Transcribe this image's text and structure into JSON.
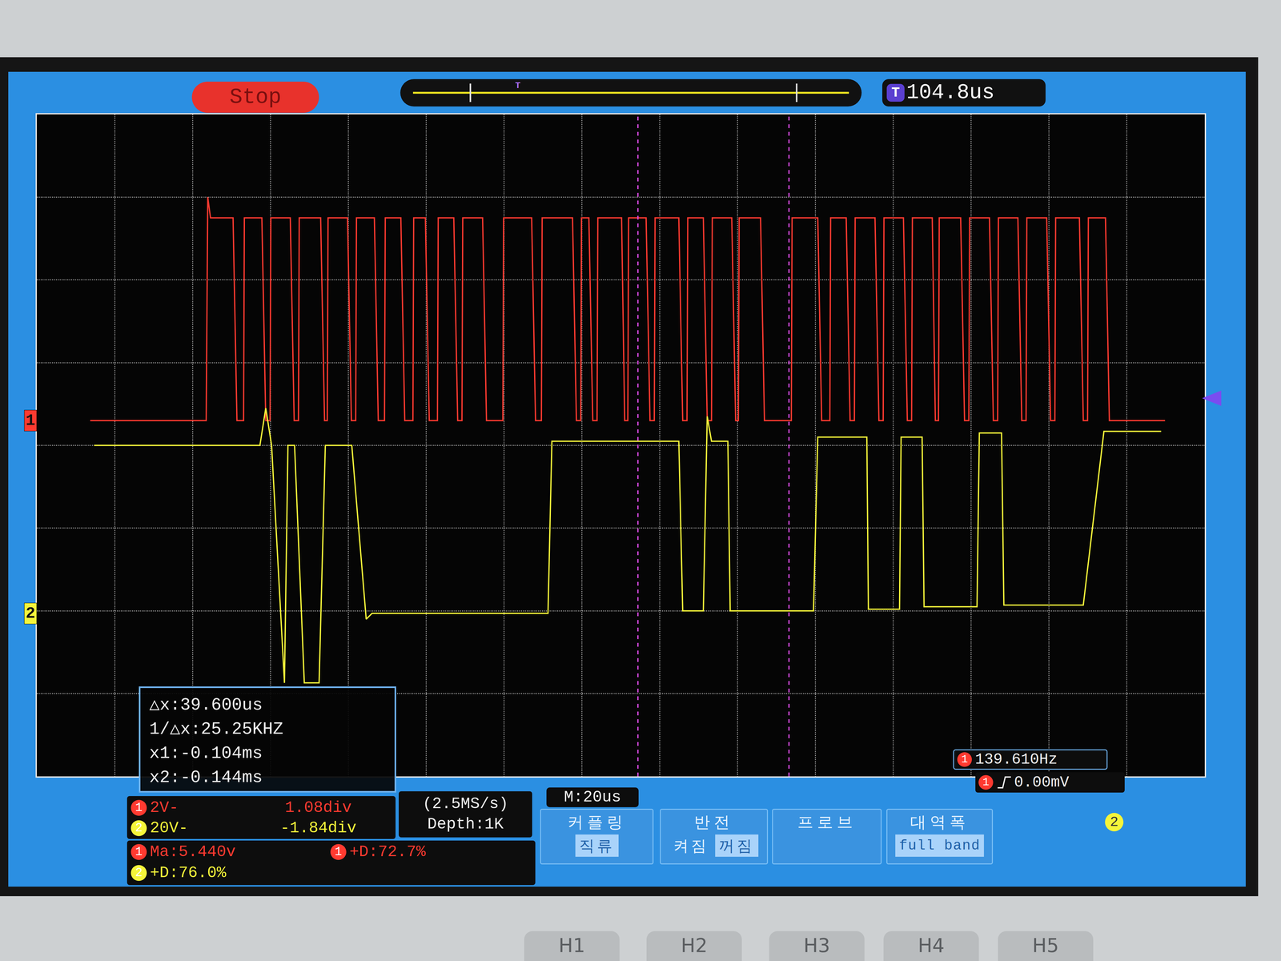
{
  "chart_data": {
    "type": "line",
    "xlim": [
      0,
      300
    ],
    "xticks": [
      0,
      20,
      40,
      60,
      80,
      100,
      120,
      140,
      160,
      180,
      200,
      220,
      240,
      260,
      280,
      300
    ],
    "ylim": [
      -4,
      4
    ],
    "yticks": [
      -4,
      -3,
      -2,
      -1,
      0,
      1,
      2,
      3,
      4
    ],
    "grid": true,
    "tick_labels": false,
    "series": [
      {
        "name": "1",
        "color": "#ff3a30",
        "ground": 0.3,
        "x": [
          13.7,
          43.5,
          43.9,
          44.6,
          50.4,
          51.4,
          53.1,
          53.3,
          57.8,
          58.8,
          59.9,
          60.1,
          65.1,
          66.1,
          67.2,
          67.4,
          72.9,
          73.9,
          74.6,
          74.8,
          79.8,
          80.8,
          81.9,
          82.1,
          86.7,
          87.7,
          89.3,
          89.5,
          93.5,
          94.5,
          96.6,
          96.8,
          99.8,
          100.8,
          102.9,
          103.1,
          107.1,
          108.1,
          109.2,
          109.4,
          114.5,
          115.5,
          119.7,
          119.9,
          127.1,
          128.1,
          129.6,
          129.8,
          137.6,
          138.6,
          139.7,
          139.9,
          141.8,
          142.8,
          143.9,
          144.1,
          150.2,
          151.0,
          151.8,
          152.0,
          156.5,
          157.5,
          158.6,
          158.8,
          164.9,
          165.9,
          167.0,
          167.2,
          171.2,
          172.2,
          173.3,
          173.5,
          178.5,
          179.5,
          180.2,
          180.4,
          185.9,
          186.9,
          193.8,
          194.0,
          200.6,
          201.6,
          203.7,
          203.9,
          207.9,
          208.9,
          210.0,
          210.2,
          215.3,
          216.3,
          217.4,
          217.6,
          222.6,
          223.6,
          224.7,
          224.9,
          230.0,
          230.8,
          231.6,
          231.8,
          237.3,
          238.3,
          239.4,
          239.6,
          244.7,
          245.7,
          246.8,
          247.0,
          252.0,
          253.0,
          254.1,
          254.3,
          259.4,
          260.4,
          261.5,
          261.7,
          267.8,
          268.8,
          269.9,
          270.1,
          274.5,
          275.5,
          289.8
        ],
        "values": [
          0.3,
          0.3,
          3.0,
          2.75,
          2.75,
          0.3,
          0.3,
          2.75,
          2.75,
          0.3,
          0.3,
          2.75,
          2.75,
          0.3,
          0.3,
          2.75,
          2.75,
          0.3,
          0.3,
          2.75,
          2.75,
          0.3,
          0.3,
          2.75,
          2.75,
          0.3,
          0.3,
          2.75,
          2.75,
          0.3,
          0.3,
          2.75,
          2.75,
          0.3,
          0.3,
          2.75,
          2.75,
          0.3,
          0.3,
          2.75,
          2.75,
          0.3,
          0.3,
          2.75,
          2.75,
          0.3,
          0.3,
          2.75,
          2.75,
          0.3,
          0.3,
          2.75,
          2.75,
          0.3,
          0.3,
          2.75,
          2.75,
          0.3,
          0.3,
          2.75,
          2.75,
          0.3,
          0.3,
          2.75,
          2.75,
          0.3,
          0.3,
          2.75,
          2.75,
          0.3,
          0.3,
          2.75,
          2.75,
          0.3,
          0.3,
          2.75,
          2.75,
          0.3,
          0.3,
          2.75,
          2.75,
          0.3,
          0.3,
          2.75,
          2.75,
          0.3,
          0.3,
          2.75,
          2.75,
          0.3,
          0.3,
          2.75,
          2.75,
          0.3,
          0.3,
          2.75,
          2.75,
          0.3,
          0.3,
          2.75,
          2.75,
          0.3,
          0.3,
          2.75,
          2.75,
          0.3,
          0.3,
          2.75,
          2.75,
          0.3,
          0.3,
          2.75,
          2.75,
          0.3,
          0.3,
          2.75,
          2.75,
          0.3,
          0.3,
          2.75,
          2.75,
          0.3,
          0.3
        ]
      },
      {
        "name": "2",
        "color": "#f5f53a",
        "ground": -2.03,
        "x": [
          14.7,
          57.3,
          58.8,
          60.3,
          63.6,
          64.5,
          66.2,
          68.7,
          72.5,
          74.1,
          80.9,
          84.6,
          86.1,
          131.3,
          132.3,
          164.9,
          165.9,
          171.2,
          172.2,
          173.3,
          177.5,
          178.1,
          199.5,
          200.6,
          213.2,
          213.6,
          221.6,
          222.0,
          227.4,
          227.9,
          241.5,
          242.1,
          247.8,
          248.4,
          268.8,
          274.1,
          288.8
        ],
        "values": [
          0,
          0,
          0.45,
          0,
          -2.87,
          0,
          0,
          -2.87,
          -2.87,
          0,
          0,
          -2.1,
          -2.03,
          -2.03,
          0.05,
          0.05,
          -2.0,
          -2.0,
          0.35,
          0.05,
          0.05,
          -2.0,
          -2.0,
          0.1,
          0.1,
          -1.98,
          -1.98,
          0.1,
          0.1,
          -1.95,
          -1.95,
          0.15,
          0.15,
          -1.93,
          -1.93,
          0.17,
          0.17
        ]
      }
    ],
    "cursors": [
      154.4,
      193.2
    ],
    "trigger_position": 48.3,
    "trigger_level": 0.57
  },
  "screen": {
    "status": "Stop",
    "trigger_symbol": "T",
    "trigger_time": "104.8us",
    "cursor_readout": [
      "△x:39.600us",
      "1/△x:25.25KHZ",
      "x1:-0.104ms",
      "x2:-0.144ms"
    ],
    "channels": [
      {
        "label": "1",
        "scale": "2V-",
        "offset": "1.08div"
      },
      {
        "label": "2",
        "scale": "20V-",
        "offset": "-1.84div"
      }
    ],
    "sampling": [
      "(2.5MS/s)",
      "Depth:1K"
    ],
    "timebase": "M:20us",
    "measurements": [
      {
        "channel": "1",
        "text": "Ma:5.440v"
      },
      {
        "channel": "1",
        "text": "+D:72.7%"
      },
      {
        "channel": "2",
        "text": "+D:76.0%"
      }
    ],
    "frequency": {
      "channel": "1",
      "text": "139.610Hz"
    },
    "trigger": {
      "channel": "1",
      "text": "0.00mV"
    },
    "menu": [
      {
        "title": "커플링",
        "options": [
          "직류"
        ],
        "selected": "직류"
      },
      {
        "title": "반전",
        "options": [
          "켜짐",
          "꺼짐"
        ],
        "selected": "꺼짐"
      },
      {
        "title": "프로브",
        "options": []
      },
      {
        "title": "대역폭",
        "options": [
          "full band"
        ],
        "selected": "full band"
      }
    ],
    "menu_channel": "2",
    "buttons": [
      "H1",
      "H2",
      "H3",
      "H4",
      "H5"
    ]
  }
}
